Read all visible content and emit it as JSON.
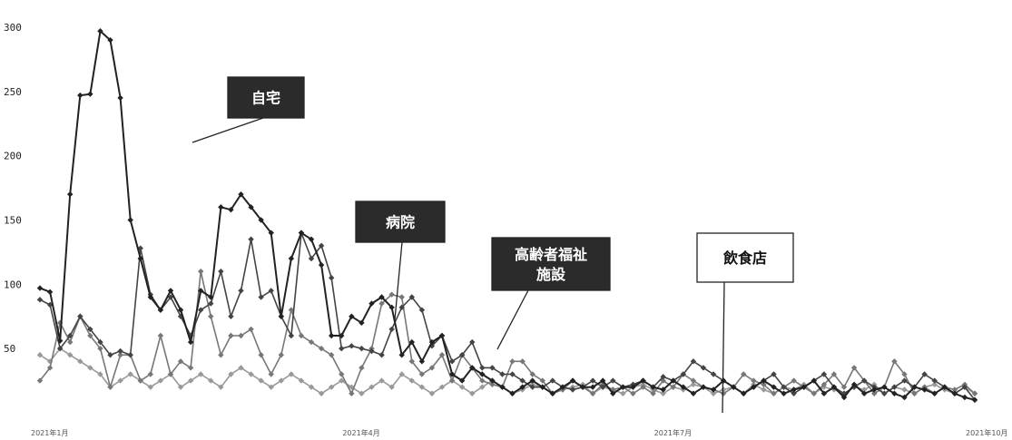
{
  "chart_data": {
    "type": "line",
    "title": "",
    "xlabel": "",
    "ylabel": "",
    "ylim": [
      0,
      300
    ],
    "yticks": [
      50,
      100,
      150,
      200,
      250,
      300
    ],
    "xtick_labels": [
      "2021年1月",
      "2021年4月",
      "2021年7月",
      "2021年10月"
    ],
    "grid": false,
    "series": [
      {
        "name": "自宅",
        "color": "#222222",
        "values": [
          97,
          94,
          56,
          170,
          247,
          248,
          297,
          290,
          245,
          150,
          120,
          90,
          80,
          95,
          80,
          55,
          95,
          90,
          160,
          158,
          170,
          160,
          150,
          140,
          75,
          120,
          140,
          135,
          115,
          60,
          60,
          75,
          70,
          85,
          90,
          82,
          45,
          55,
          40,
          55,
          60,
          30,
          25,
          35,
          30,
          25,
          20,
          15,
          20,
          25,
          20,
          15,
          20,
          25,
          20,
          20,
          25,
          15,
          20,
          20,
          25,
          20,
          18,
          25,
          20,
          15,
          20,
          18,
          25,
          20,
          15,
          20,
          25,
          20,
          15,
          18,
          20,
          25,
          15,
          20,
          12,
          22,
          15,
          18,
          20,
          15,
          12,
          20,
          18,
          15,
          20,
          15,
          12,
          10
        ]
      },
      {
        "name": "病院",
        "color": "#444444",
        "values": [
          88,
          84,
          50,
          60,
          75,
          65,
          55,
          45,
          48,
          45,
          128,
          92,
          80,
          90,
          75,
          60,
          80,
          85,
          110,
          75,
          95,
          135,
          90,
          95,
          75,
          60,
          140,
          120,
          130,
          105,
          50,
          52,
          50,
          48,
          45,
          65,
          82,
          90,
          80,
          52,
          60,
          40,
          45,
          55,
          35,
          35,
          30,
          30,
          25,
          20,
          20,
          25,
          20,
          18,
          20,
          25,
          20,
          25,
          20,
          22,
          25,
          20,
          28,
          25,
          30,
          40,
          35,
          30,
          25,
          20,
          15,
          20,
          25,
          30,
          20,
          15,
          20,
          25,
          30,
          20,
          15,
          20,
          25,
          20,
          15,
          20,
          25,
          20,
          30,
          25,
          20,
          15,
          20,
          10
        ]
      },
      {
        "name": "高齢者福祉施設",
        "color": "#777777",
        "values": [
          25,
          35,
          70,
          55,
          75,
          60,
          50,
          20,
          45,
          45,
          25,
          30,
          60,
          30,
          40,
          35,
          110,
          75,
          45,
          60,
          60,
          65,
          45,
          30,
          45,
          80,
          60,
          55,
          50,
          45,
          30,
          15,
          35,
          50,
          85,
          92,
          90,
          40,
          30,
          35,
          45,
          25,
          45,
          35,
          25,
          22,
          20,
          40,
          40,
          30,
          25,
          15,
          18,
          25,
          20,
          15,
          22,
          18,
          20,
          15,
          20,
          15,
          25,
          20,
          30,
          25,
          20,
          18,
          15,
          20,
          30,
          25,
          22,
          15,
          20,
          25,
          20,
          15,
          22,
          30,
          20,
          35,
          25,
          15,
          20,
          40,
          30,
          15,
          20,
          15,
          20,
          18,
          22,
          15
        ]
      },
      {
        "name": "飲食店",
        "color": "#999999",
        "values": [
          45,
          40,
          50,
          45,
          40,
          35,
          30,
          20,
          25,
          30,
          25,
          20,
          25,
          30,
          20,
          25,
          30,
          25,
          20,
          30,
          35,
          30,
          25,
          20,
          25,
          30,
          25,
          20,
          15,
          20,
          25,
          20,
          15,
          20,
          25,
          20,
          30,
          25,
          20,
          15,
          20,
          25,
          20,
          15,
          20,
          25,
          20,
          15,
          18,
          22,
          20,
          15,
          18,
          20,
          22,
          15,
          20,
          18,
          15,
          20,
          22,
          18,
          15,
          20,
          18,
          22,
          20,
          15,
          18,
          20,
          15,
          22,
          18,
          15,
          20,
          18,
          22,
          15,
          20,
          18,
          15,
          20,
          18,
          22,
          15,
          20,
          18,
          15,
          20,
          22,
          18,
          15,
          20,
          15
        ]
      }
    ],
    "annotations": [
      {
        "text": "自宅",
        "style": "dark"
      },
      {
        "text": "病院",
        "style": "dark"
      },
      {
        "text": "高齢者福祉",
        "text2": "施設",
        "style": "dark"
      },
      {
        "text": "飲食店",
        "style": "light"
      }
    ]
  }
}
